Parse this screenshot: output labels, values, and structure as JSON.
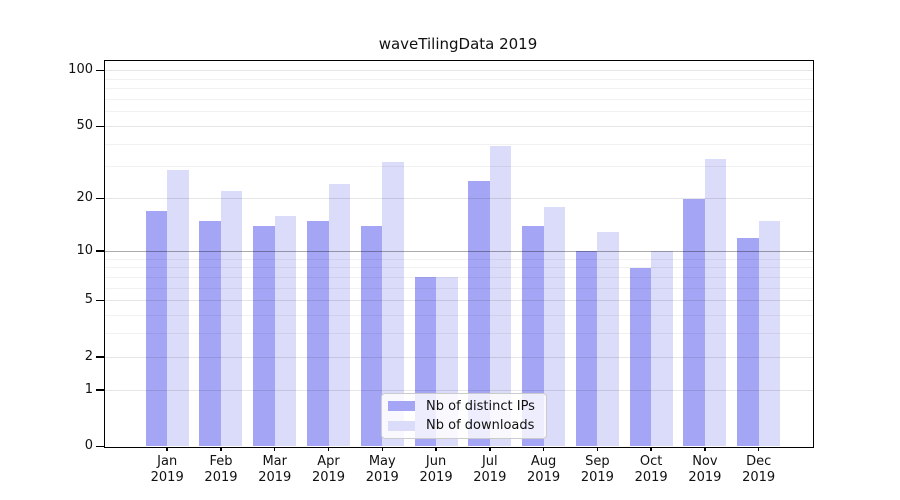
{
  "chart_data": {
    "type": "bar",
    "title": "waveTilingData 2019",
    "categories": [
      "Jan",
      "Feb",
      "Mar",
      "Apr",
      "May",
      "Jun",
      "Jul",
      "Aug",
      "Sep",
      "Oct",
      "Nov",
      "Dec"
    ],
    "category_year": "2019",
    "series": [
      {
        "name": "Nb of distinct IPs",
        "color": "#a5a5f6",
        "values": [
          17,
          15,
          14,
          15,
          14,
          7,
          25,
          14,
          10,
          8,
          20,
          12
        ]
      },
      {
        "name": "Nb of downloads",
        "color": "#dbdbfa",
        "values": [
          29,
          22,
          16,
          24,
          32,
          7,
          39,
          18,
          13,
          10,
          33,
          15
        ]
      }
    ],
    "xlabel": "",
    "ylabel": "",
    "y_axis": {
      "scale": "symlog",
      "major_ticks": [
        0,
        1,
        2,
        5,
        10,
        20,
        50,
        100
      ],
      "minor_gridlines": [
        3,
        4,
        6,
        7,
        8,
        9,
        30,
        40,
        60,
        70,
        80,
        90
      ],
      "emphasized_gridline": 10,
      "ylim": [
        0,
        114
      ]
    },
    "grid": true,
    "legend_position": "inside-bottom-center",
    "colors": {
      "spine": "#000000",
      "text": "#111111",
      "grid_minor": "rgba(0,0,0,0.055)",
      "grid_major": "rgba(0,0,0,0.10)",
      "grid_emphasis": "rgba(0,0,0,0.33)"
    }
  }
}
